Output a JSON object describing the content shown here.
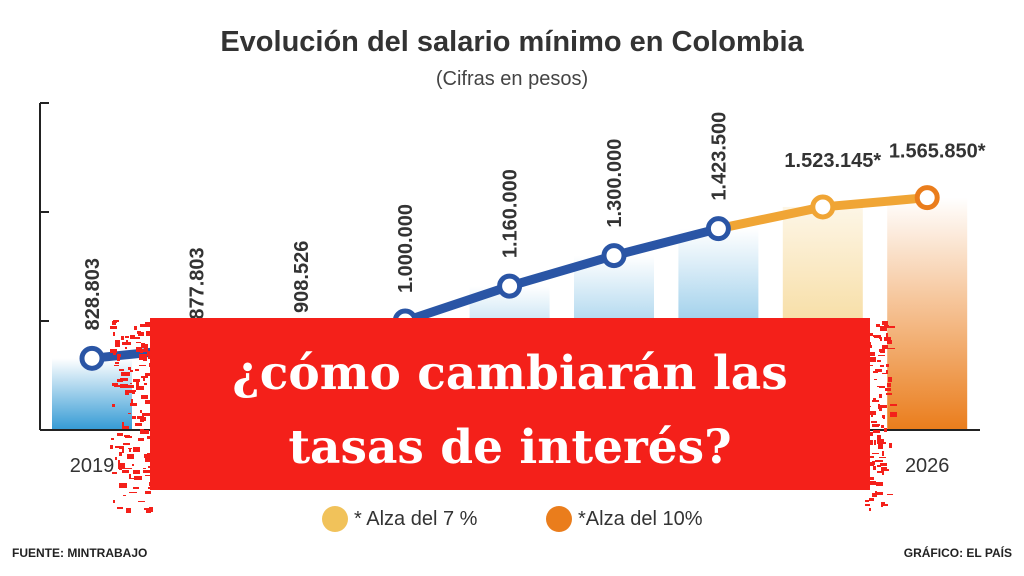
{
  "chart_data": {
    "type": "line",
    "title": "Evolución del salario mínimo en Colombia",
    "subtitle": "(Cifras en pesos)",
    "x_tick_labels": [
      "2019",
      "2026"
    ],
    "points": [
      {
        "label": "828.803",
        "value": 828803,
        "kind": "historic"
      },
      {
        "label": "877.803",
        "value": 877803,
        "kind": "historic"
      },
      {
        "label": "908.526",
        "value": 908526,
        "kind": "historic"
      },
      {
        "label": "1.000.000",
        "value": 1000000,
        "kind": "historic"
      },
      {
        "label": "1.160.000",
        "value": 1160000,
        "kind": "historic"
      },
      {
        "label": "1.300.000",
        "value": 1300000,
        "kind": "historic"
      },
      {
        "label": "1.423.500",
        "value": 1423500,
        "kind": "historic"
      },
      {
        "label": "1.523.145*",
        "value": 1523145,
        "kind": "alza7"
      },
      {
        "label": "1.565.850*",
        "value": 1565850,
        "kind": "alza10"
      }
    ],
    "ylim": [
      500000,
      2000000
    ],
    "y_ticks": [
      500000,
      1000000,
      1500000,
      2000000
    ],
    "grid": false,
    "legend": [
      {
        "label": "* Alza del 7 %",
        "color": "#f1c25a"
      },
      {
        "label": "*Alza del 10%",
        "color": "#ea7d1c"
      }
    ],
    "legend_position": "bottom",
    "colors": {
      "line": "#2a55a5",
      "bar_historic": "#1d8fd0",
      "alza7": "#f1c25a",
      "alza10": "#ea7d1c"
    }
  },
  "source": "FUENTE: MINTRABAJO",
  "credit": "GRÁFICO: EL PAÍS",
  "banner": {
    "line1": "¿cómo cambiarán las",
    "line2": "tasas de interés?",
    "color": "#f4201a"
  }
}
